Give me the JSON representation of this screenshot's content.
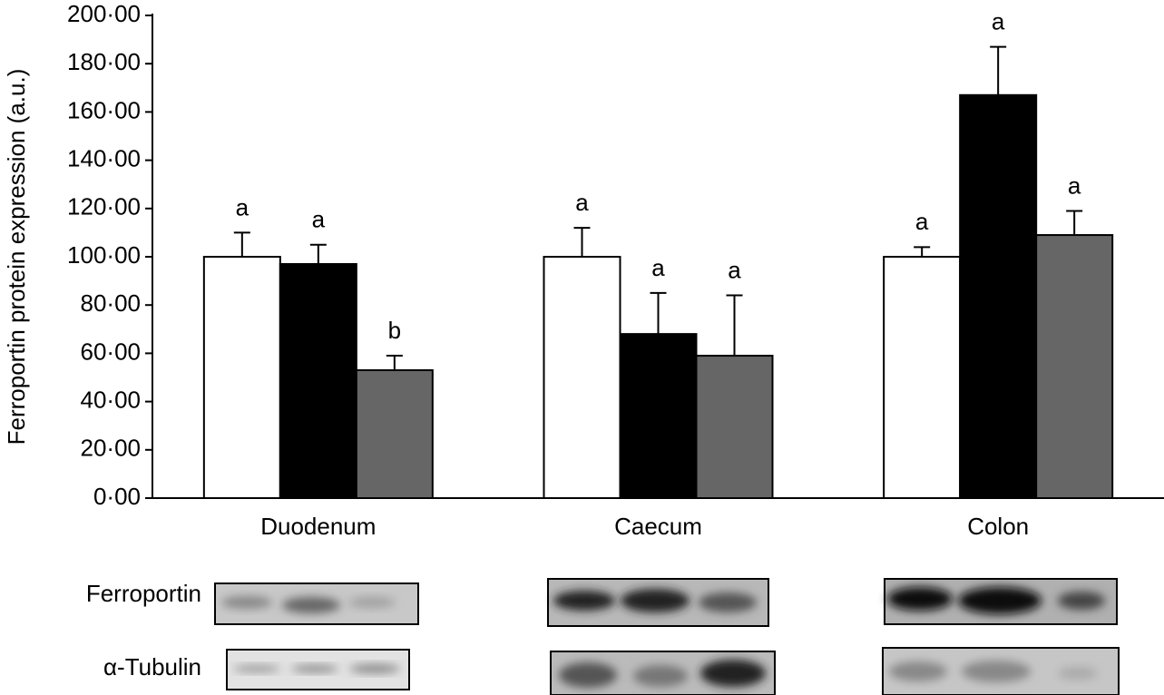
{
  "chart_data": {
    "type": "bar",
    "y_label": "Ferroportin protein expression (a.u.)",
    "categories": [
      "Duodenum",
      "Caecum",
      "Colon"
    ],
    "series": [
      {
        "color": "#ffffff",
        "values": [
          100,
          100,
          100
        ],
        "errors": [
          10,
          12,
          4
        ],
        "letters": [
          "a",
          "a",
          "a"
        ]
      },
      {
        "color": "#000000",
        "values": [
          97,
          68,
          167
        ],
        "errors": [
          8,
          17,
          20
        ],
        "letters": [
          "a",
          "a",
          "a"
        ]
      },
      {
        "color": "#666666",
        "values": [
          53,
          59,
          109
        ],
        "errors": [
          6,
          25,
          10
        ],
        "letters": [
          "b",
          "a",
          "a"
        ]
      }
    ],
    "ylim": [
      0,
      200
    ],
    "yticks": [
      {
        "value": 0,
        "label": "0·00"
      },
      {
        "value": 20,
        "label": "20·00"
      },
      {
        "value": 40,
        "label": "40·00"
      },
      {
        "value": 60,
        "label": "60·00"
      },
      {
        "value": 80,
        "label": "80·00"
      },
      {
        "value": 100,
        "label": "100·00"
      },
      {
        "value": 120,
        "label": "120·00"
      },
      {
        "value": 140,
        "label": "140·00"
      },
      {
        "value": 160,
        "label": "160·00"
      },
      {
        "value": 180,
        "label": "180·00"
      },
      {
        "value": 200,
        "label": "200·00"
      }
    ],
    "blot_labels": [
      "Ferroportin",
      "α-Tubulin"
    ]
  }
}
